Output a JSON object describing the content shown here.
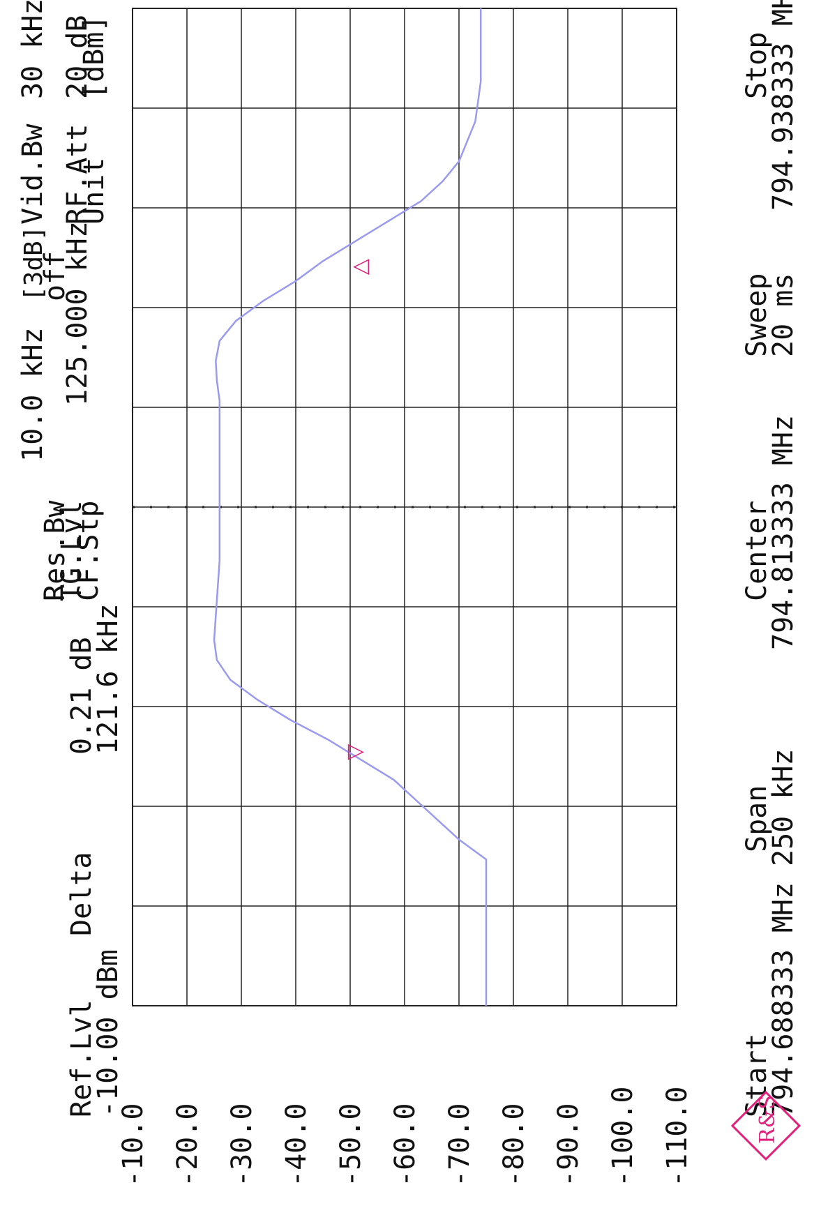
{
  "header": {
    "ref_lvl_label": "Ref.Lvl",
    "ref_lvl_value": "-10.00 dBm",
    "mode": "Delta",
    "delta_db": "0.21 dB",
    "delta_freq": "121.6 kHz",
    "res_bw_label": "Res.Bw",
    "tg_lvl_label": "TG.Lvl",
    "cf_stp_label": "CF.Stp",
    "res_bw_value": "10.0 kHz",
    "res_bw_note": "[3dB]",
    "tg_lvl_value": "off",
    "cf_stp_value": "125.000 kHz",
    "vid_bw_label": "Vid.Bw",
    "rf_att_label": "RF.Att",
    "unit_label": "Unit",
    "vid_bw_value": "30 kHz",
    "rf_att_value": "20 dB",
    "unit_value": "[dBm]"
  },
  "footer": {
    "start_label": "Start",
    "start_value": "794.688333 MHz",
    "span_label": "Span",
    "span_value": "250 kHz",
    "center_label": "Center",
    "center_value": "794.813333 MHz",
    "sweep_label": "Sweep",
    "sweep_value": "20 ms",
    "stop_label": "Stop",
    "stop_value": "794.938333 MHz"
  },
  "logo_text": "R&S",
  "colors": {
    "trace": "#9a9af0",
    "marker": "#e0207a",
    "grid": "#222222",
    "logo": "#e0207a"
  },
  "chart_data": {
    "type": "line",
    "title": "",
    "xlabel": "",
    "ylabel": "",
    "xlim": [
      794.688333,
      794.938333
    ],
    "ylim": [
      -110,
      -10
    ],
    "yticks": [
      "-10.0",
      "-20.0",
      "-30.0",
      "-40.0",
      "-50.0",
      "-60.0",
      "-70.0",
      "-80.0",
      "-90.0",
      "-100.0",
      "-110.0"
    ],
    "grid": true,
    "series": [
      {
        "x": [
          794.688333,
          794.7,
          794.71,
          794.72,
          794.725,
          794.728,
          794.73,
          794.735,
          794.74,
          794.745,
          794.75,
          794.755,
          794.76,
          794.765,
          794.77,
          794.775,
          794.78,
          794.79,
          794.8,
          794.81,
          794.82,
          794.83,
          794.84,
          794.845,
          794.85,
          794.855,
          794.86,
          794.865,
          794.87,
          794.875,
          794.88,
          794.885,
          794.89,
          794.895,
          794.9,
          794.91,
          794.92,
          794.93,
          794.938333
        ],
        "y": [
          -75,
          -75,
          -75,
          -75,
          -75,
          -72,
          -70,
          -66,
          -62,
          -58,
          -52,
          -46,
          -39,
          -33,
          -28,
          -25.5,
          -25,
          -25.5,
          -26,
          -26,
          -26,
          -26,
          -26,
          -25.5,
          -25.3,
          -26,
          -29,
          -34,
          -40,
          -45,
          -51,
          -57,
          -63,
          -67,
          -70,
          -73,
          -74,
          -74,
          -74
        ]
      }
    ],
    "markers": [
      {
        "symbol": "▽",
        "x": 794.752,
        "y": -50.5
      },
      {
        "symbol": "△",
        "x": 794.8736,
        "y": -51.5
      }
    ],
    "center_line_x": 794.813333
  }
}
